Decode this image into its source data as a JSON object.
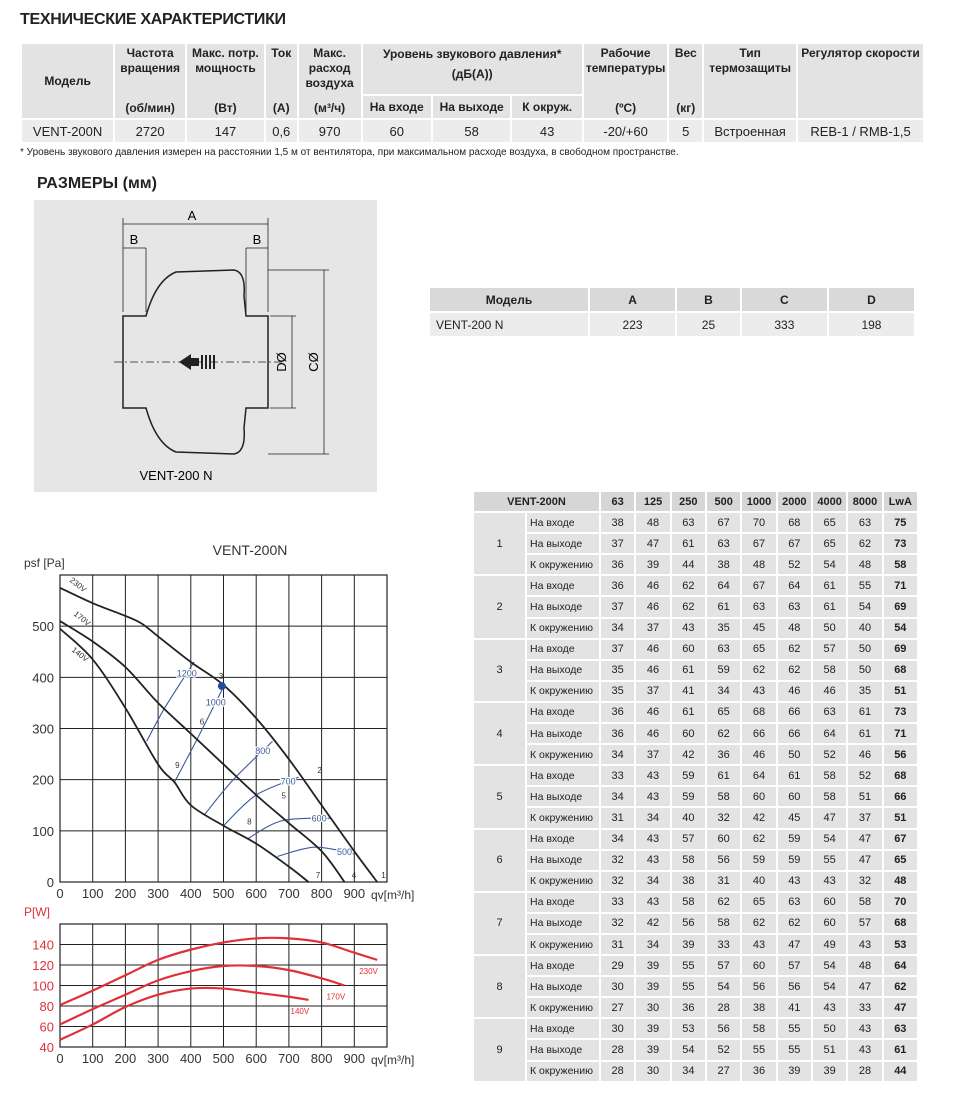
{
  "title": "ТЕХНИЧЕСКИЕ ХАРАКТЕРИСТИКИ",
  "spec": {
    "headers": {
      "model": "Модель",
      "rpm": "Частота вращения",
      "rpm_u": "(об/мин)",
      "power": "Макс. потр. мощность",
      "power_u": "(Вт)",
      "current": "Ток",
      "current_u": "(А)",
      "flow": "Макс. расход воздуха",
      "flow_u": "(м³/ч)",
      "noise": "Уровень звукового давления*",
      "noise_u": "(дБ(А))",
      "inlet": "На входе",
      "outlet": "На выходе",
      "ambient": "К окруж.",
      "temp": "Рабочие температуры",
      "temp_u": "(ºС)",
      "weight": "Вес",
      "weight_u": "(кг)",
      "protection": "Тип термозащиты",
      "regulator": "Регулятор скорости"
    },
    "row": {
      "model": "VENT-200N",
      "rpm": "2720",
      "power": "147",
      "current": "0,6",
      "flow": "970",
      "inlet": "60",
      "outlet": "58",
      "ambient": "43",
      "temp": "-20/+60",
      "weight": "5",
      "protection": "Встроенная",
      "regulator": "REB-1 / RMB-1,5"
    }
  },
  "footnote": "* Уровень звукового давления измерен на расстоянии 1,5 м от вентилятора, при максимальном расходе воздуха, в свободном пространстве.",
  "dimensions_title": "РАЗМЕРЫ (мм)",
  "drawing": {
    "label": "VENT-200 N",
    "A": "A",
    "B": "B",
    "C": "CØ",
    "D": "DØ"
  },
  "dims_table": {
    "headers": [
      "Модель",
      "A",
      "B",
      "C",
      "D"
    ],
    "row": [
      "VENT-200 N",
      "223",
      "25",
      "333",
      "198"
    ]
  },
  "noise_table": {
    "headers": [
      "VENT-200N",
      "63",
      "125",
      "250",
      "500",
      "1000",
      "2000",
      "4000",
      "8000",
      "LwA"
    ],
    "groups": [
      {
        "id": "1",
        "rows": [
          [
            "На входе",
            "38",
            "48",
            "63",
            "67",
            "70",
            "68",
            "65",
            "63",
            "75"
          ],
          [
            "На выходе",
            "37",
            "47",
            "61",
            "63",
            "67",
            "67",
            "65",
            "62",
            "73"
          ],
          [
            "К окружению",
            "36",
            "39",
            "44",
            "38",
            "48",
            "52",
            "54",
            "48",
            "58"
          ]
        ]
      },
      {
        "id": "2",
        "rows": [
          [
            "На входе",
            "36",
            "46",
            "62",
            "64",
            "67",
            "64",
            "61",
            "55",
            "71"
          ],
          [
            "На выходе",
            "37",
            "46",
            "62",
            "61",
            "63",
            "63",
            "61",
            "54",
            "69"
          ],
          [
            "К окружению",
            "34",
            "37",
            "43",
            "35",
            "45",
            "48",
            "50",
            "40",
            "54"
          ]
        ]
      },
      {
        "id": "3",
        "rows": [
          [
            "На входе",
            "37",
            "46",
            "60",
            "63",
            "65",
            "62",
            "57",
            "50",
            "69"
          ],
          [
            "На выходе",
            "35",
            "46",
            "61",
            "59",
            "62",
            "62",
            "58",
            "50",
            "68"
          ],
          [
            "К окружению",
            "35",
            "37",
            "41",
            "34",
            "43",
            "46",
            "46",
            "35",
            "51"
          ]
        ]
      },
      {
        "id": "4",
        "rows": [
          [
            "На входе",
            "36",
            "46",
            "61",
            "65",
            "68",
            "66",
            "63",
            "61",
            "73"
          ],
          [
            "На выходе",
            "36",
            "46",
            "60",
            "62",
            "66",
            "66",
            "64",
            "61",
            "71"
          ],
          [
            "К окружению",
            "34",
            "37",
            "42",
            "36",
            "46",
            "50",
            "52",
            "46",
            "56"
          ]
        ]
      },
      {
        "id": "5",
        "rows": [
          [
            "На входе",
            "33",
            "43",
            "59",
            "61",
            "64",
            "61",
            "58",
            "52",
            "68"
          ],
          [
            "На выходе",
            "34",
            "43",
            "59",
            "58",
            "60",
            "60",
            "58",
            "51",
            "66"
          ],
          [
            "К окружению",
            "31",
            "34",
            "40",
            "32",
            "42",
            "45",
            "47",
            "37",
            "51"
          ]
        ]
      },
      {
        "id": "6",
        "rows": [
          [
            "На входе",
            "34",
            "43",
            "57",
            "60",
            "62",
            "59",
            "54",
            "47",
            "67"
          ],
          [
            "На выходе",
            "32",
            "43",
            "58",
            "56",
            "59",
            "59",
            "55",
            "47",
            "65"
          ],
          [
            "К окружению",
            "32",
            "34",
            "38",
            "31",
            "40",
            "43",
            "43",
            "32",
            "48"
          ]
        ]
      },
      {
        "id": "7",
        "rows": [
          [
            "На входе",
            "33",
            "43",
            "58",
            "62",
            "65",
            "63",
            "60",
            "58",
            "70"
          ],
          [
            "На выходе",
            "32",
            "42",
            "56",
            "58",
            "62",
            "62",
            "60",
            "57",
            "68"
          ],
          [
            "К окружению",
            "31",
            "34",
            "39",
            "33",
            "43",
            "47",
            "49",
            "43",
            "53"
          ]
        ]
      },
      {
        "id": "8",
        "rows": [
          [
            "На входе",
            "29",
            "39",
            "55",
            "57",
            "60",
            "57",
            "54",
            "48",
            "64"
          ],
          [
            "На выходе",
            "30",
            "39",
            "55",
            "54",
            "56",
            "56",
            "54",
            "47",
            "62"
          ],
          [
            "К окружению",
            "27",
            "30",
            "36",
            "28",
            "38",
            "41",
            "43",
            "33",
            "47"
          ]
        ]
      },
      {
        "id": "9",
        "rows": [
          [
            "На входе",
            "30",
            "39",
            "53",
            "56",
            "58",
            "55",
            "50",
            "43",
            "63"
          ],
          [
            "На выходе",
            "28",
            "39",
            "54",
            "52",
            "55",
            "55",
            "51",
            "43",
            "61"
          ],
          [
            "К окружению",
            "28",
            "30",
            "34",
            "27",
            "36",
            "39",
            "39",
            "28",
            "44"
          ]
        ]
      }
    ]
  },
  "chart_data": [
    {
      "type": "line",
      "title": "VENT-200N",
      "ylabel": "psf [Pa]",
      "xlabel": "qv[m³/h]",
      "xlim": [
        0,
        1000
      ],
      "ylim": [
        0,
        600
      ],
      "xticks": [
        0,
        100,
        200,
        300,
        400,
        500,
        600,
        700,
        800,
        900
      ],
      "yticks": [
        0,
        100,
        200,
        300,
        400,
        500
      ],
      "grid": true,
      "series": [
        {
          "name": "230V",
          "color": "#222222",
          "points": [
            [
              0,
              575
            ],
            [
              100,
              545
            ],
            [
              200,
              520
            ],
            [
              250,
              505
            ],
            [
              300,
              480
            ],
            [
              400,
              430
            ],
            [
              500,
              385
            ],
            [
              600,
              320
            ],
            [
              700,
              240
            ],
            [
              800,
              150
            ],
            [
              900,
              60
            ],
            [
              970,
              0
            ]
          ]
        },
        {
          "name": "170V",
          "color": "#222222",
          "points": [
            [
              0,
              510
            ],
            [
              100,
              470
            ],
            [
              200,
              420
            ],
            [
              300,
              350
            ],
            [
              400,
              290
            ],
            [
              500,
              230
            ],
            [
              600,
              170
            ],
            [
              700,
              115
            ],
            [
              800,
              60
            ],
            [
              870,
              0
            ]
          ]
        },
        {
          "name": "140V",
          "color": "#222222",
          "points": [
            [
              0,
              495
            ],
            [
              100,
              435
            ],
            [
              200,
              340
            ],
            [
              300,
              230
            ],
            [
              350,
              195
            ],
            [
              400,
              150
            ],
            [
              500,
              110
            ],
            [
              600,
              75
            ],
            [
              700,
              30
            ],
            [
              760,
              0
            ]
          ]
        }
      ],
      "iso_lines": [
        {
          "label": "1200",
          "color": "#3a5a9a",
          "points": [
            [
              265,
              275
            ],
            [
              320,
              340
            ],
            [
              410,
              430
            ]
          ]
        },
        {
          "label": "1000",
          "color": "#3a5a9a",
          "points": [
            [
              350,
              195
            ],
            [
              420,
              280
            ],
            [
              495,
              375
            ]
          ]
        },
        {
          "label": "800",
          "color": "#3a5a9a",
          "points": [
            [
              440,
              130
            ],
            [
              530,
              200
            ],
            [
              650,
              275
            ]
          ]
        },
        {
          "label": "700",
          "color": "#3a5a9a",
          "points": [
            [
              500,
              110
            ],
            [
              600,
              170
            ],
            [
              730,
              205
            ]
          ]
        },
        {
          "label": "600",
          "color": "#3a5a9a",
          "points": [
            [
              575,
              85
            ],
            [
              680,
              120
            ],
            [
              830,
              125
            ]
          ]
        },
        {
          "label": "500",
          "color": "#3a5a9a",
          "points": [
            [
              665,
              50
            ],
            [
              780,
              68
            ],
            [
              900,
              55
            ]
          ]
        }
      ],
      "point_labels": [
        {
          "label": "1",
          "x": 970,
          "y": 0
        },
        {
          "label": "2",
          "x": 775,
          "y": 205
        },
        {
          "label": "3",
          "x": 495,
          "y": 383,
          "marker": true,
          "color": "#1f4e9c"
        },
        {
          "label": "4",
          "x": 880,
          "y": 0
        },
        {
          "label": "5",
          "x": 665,
          "y": 155
        },
        {
          "label": "6",
          "x": 415,
          "y": 300
        },
        {
          "label": "7",
          "x": 770,
          "y": 0
        },
        {
          "label": "8",
          "x": 560,
          "y": 105
        },
        {
          "label": "9",
          "x": 340,
          "y": 215
        }
      ]
    },
    {
      "type": "line",
      "ylabel": "P[W]",
      "xlabel": "qv[m³/h]",
      "xlim": [
        0,
        1000
      ],
      "ylim": [
        40,
        160
      ],
      "xticks": [
        0,
        100,
        200,
        300,
        400,
        500,
        600,
        700,
        800,
        900
      ],
      "yticks": [
        40,
        60,
        80,
        100,
        120,
        140
      ],
      "grid": true,
      "color": "#e0303a",
      "series": [
        {
          "name": "230V",
          "points": [
            [
              0,
              81
            ],
            [
              100,
              95
            ],
            [
              200,
              110
            ],
            [
              300,
              125
            ],
            [
              400,
              135
            ],
            [
              500,
              142
            ],
            [
              600,
              146
            ],
            [
              700,
              146
            ],
            [
              800,
              142
            ],
            [
              900,
              132
            ],
            [
              970,
              125
            ]
          ]
        },
        {
          "name": "170V",
          "points": [
            [
              0,
              62
            ],
            [
              100,
              77
            ],
            [
              200,
              91
            ],
            [
              300,
              105
            ],
            [
              400,
              114
            ],
            [
              500,
              119
            ],
            [
              600,
              119
            ],
            [
              700,
              115
            ],
            [
              800,
              107
            ],
            [
              870,
              100
            ]
          ]
        },
        {
          "name": "140V",
          "points": [
            [
              0,
              47
            ],
            [
              100,
              62
            ],
            [
              200,
              79
            ],
            [
              300,
              91
            ],
            [
              400,
              97
            ],
            [
              500,
              97
            ],
            [
              600,
              93
            ],
            [
              700,
              89
            ],
            [
              760,
              86
            ]
          ]
        }
      ]
    }
  ]
}
